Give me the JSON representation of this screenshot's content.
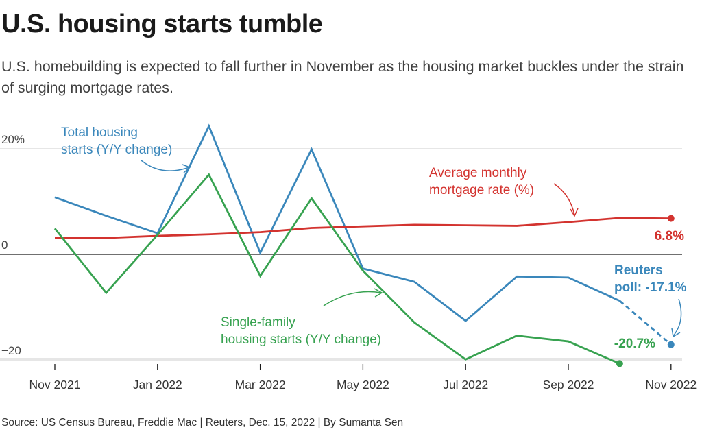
{
  "title": "U.S. housing starts tumble",
  "subtitle": "U.S. homebuilding is expected to fall further in November as the housing market buckles under the strain of surging mortgage rates.",
  "source": "Source: US Census Bureau, Freddie Mac | Reuters, Dec. 15, 2022 | By Sumanta Sen",
  "colors": {
    "total": "#3a87bb",
    "single": "#37a250",
    "mortgage": "#d3332f",
    "grid": "#cccccc",
    "zero": "#1a1a1a"
  },
  "chart_data": {
    "type": "line",
    "categories": [
      "Nov 2021",
      "Dec 2021",
      "Jan 2022",
      "Feb 2022",
      "Mar 2022",
      "Apr 2022",
      "May 2022",
      "Jun 2022",
      "Jul 2022",
      "Aug 2022",
      "Sep 2022",
      "Oct 2022",
      "Nov 2022"
    ],
    "tick_labels": [
      "Nov 2021",
      "Jan 2022",
      "Mar 2022",
      "May 2022",
      "Jul 2022",
      "Sep 2022",
      "Nov 2022"
    ],
    "y_tick_labels": [
      "20%",
      "0",
      "−20"
    ],
    "y_ticks": [
      20,
      0,
      -20
    ],
    "ylim": [
      -22,
      25
    ],
    "grid": true,
    "series": [
      {
        "key": "total",
        "name": "Total housing starts (Y/Y change)",
        "values": [
          10.8,
          7.3,
          4.0,
          24.3,
          0.3,
          19.9,
          -2.7,
          -5.2,
          -12.6,
          -4.2,
          -4.4,
          -8.8,
          null
        ],
        "forecast": {
          "from": "Oct 2022",
          "to": "Nov 2022",
          "value": -17.1
        }
      },
      {
        "key": "mortgage",
        "name": "Average monthly mortgage rate (%)",
        "values": [
          3.1,
          3.1,
          3.5,
          3.8,
          4.2,
          5.0,
          5.3,
          5.6,
          5.5,
          5.4,
          6.1,
          6.9,
          6.8
        ]
      },
      {
        "key": "single",
        "name": "Single-family housing starts (Y/Y change)",
        "values": [
          4.9,
          -7.3,
          3.7,
          15.1,
          -4.1,
          10.6,
          -3.1,
          -12.9,
          -19.9,
          -15.4,
          -16.5,
          -20.7,
          null
        ]
      }
    ],
    "annotations": {
      "total_label": [
        "Total housing",
        "starts (Y/Y change)"
      ],
      "mortgage_label": [
        "Average monthly",
        "mortgage rate (%)"
      ],
      "single_label": [
        "Single-family",
        "housing starts (Y/Y change)"
      ],
      "mortgage_end": "6.8%",
      "poll_label": [
        "Reuters",
        "poll: -17.1%"
      ],
      "single_end": "-20.7%"
    }
  }
}
